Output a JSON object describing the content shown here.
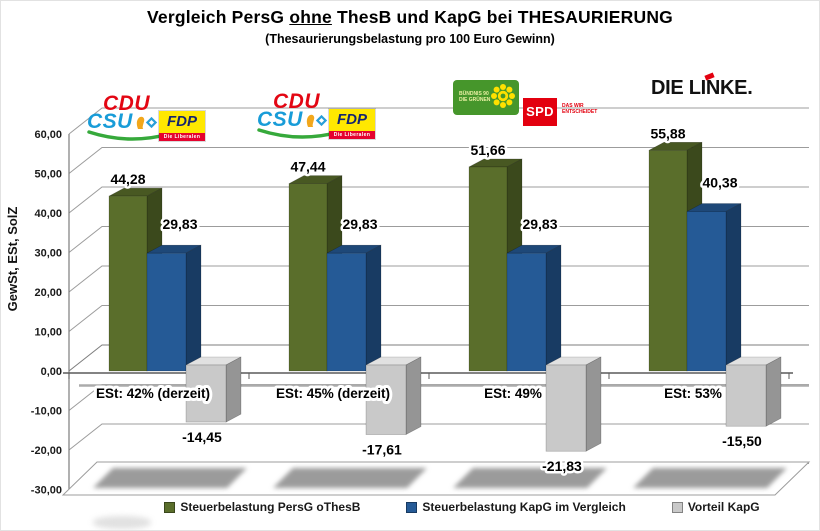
{
  "header": {
    "title_pre": "Vergleich PersG",
    "title_underline": "ohne",
    "title_post": "ThesB und KapG bei THESAURIERUNG",
    "subtitle": "(Thesaurierungsbelastung pro 100 Euro Gewinn)"
  },
  "chart_data": {
    "type": "bar",
    "style": "3d-clustered-column",
    "title": "Vergleich PersG ohne ThesB und KapG bei THESAURIERUNG",
    "subtitle": "(Thesaurierungsbelastung pro 100 Euro Gewinn)",
    "ylabel": "GewSt, ESt, SolZ",
    "ylim": [
      -30,
      60
    ],
    "yticks": [
      60,
      50,
      40,
      30,
      20,
      10,
      0,
      -10,
      -20,
      -30
    ],
    "ytick_labels": [
      "60,00",
      "50,00",
      "40,00",
      "30,00",
      "20,00",
      "10,00",
      "0,00",
      "-10,00",
      "-20,00",
      "-30,00"
    ],
    "categories": [
      "ESt: 42% (derzeit)",
      "ESt: 45% (derzeit)",
      "ESt: 49%",
      "ESt: 53%"
    ],
    "category_parties": [
      [
        "CDU",
        "CSU",
        "FDP"
      ],
      [
        "CDU",
        "CSU",
        "FDP"
      ],
      [
        "GRÜNE",
        "SPD"
      ],
      [
        "DIE LINKE"
      ]
    ],
    "grid": true,
    "legend_position": "bottom",
    "series": [
      {
        "name": "Steuerbelastung PersG oThesB",
        "color": "#5a6e2b",
        "values": [
          44.28,
          47.44,
          51.66,
          55.88
        ],
        "labels": [
          "44,28",
          "47,44",
          "51,66",
          "55,88"
        ]
      },
      {
        "name": "Steuerbelastung KapG im Vergleich",
        "color": "#255a96",
        "values": [
          29.83,
          29.83,
          29.83,
          40.38
        ],
        "labels": [
          "29,83",
          "29,83",
          "29,83",
          "40,38"
        ]
      },
      {
        "name": "Vorteil KapG",
        "color": "#c9c9c9",
        "values": [
          -14.45,
          -17.61,
          -21.83,
          -15.5
        ],
        "labels": [
          "-14,45",
          "-17,61",
          "-21,83",
          "-15,50"
        ]
      }
    ]
  },
  "logos": {
    "cdu": "CDU",
    "csu": "CSU",
    "fdp": "FDP",
    "fdp_subtitle": "Die Liberalen",
    "gruene_line1": "BÜNDNIS 90",
    "gruene_line2": "DIE GRÜNEN",
    "spd": "SPD",
    "spd_claim_line1": "DAS WIR",
    "spd_claim_line2": "ENTSCHEIDET",
    "linke": "DIE LINKE."
  },
  "colors": {
    "cdu_red": "#e30613",
    "csu_blue": "#189cd8",
    "csu_green": "#36a93b",
    "fdp_yellow": "#ffe800",
    "fdp_blue": "#15256e",
    "fdp_red": "#e5032e",
    "gruene_green": "#46962b",
    "gruene_text": "#e9f0a2",
    "spd_red": "#e3000f",
    "linke_black": "#111111",
    "linke_red": "#e3000f"
  }
}
